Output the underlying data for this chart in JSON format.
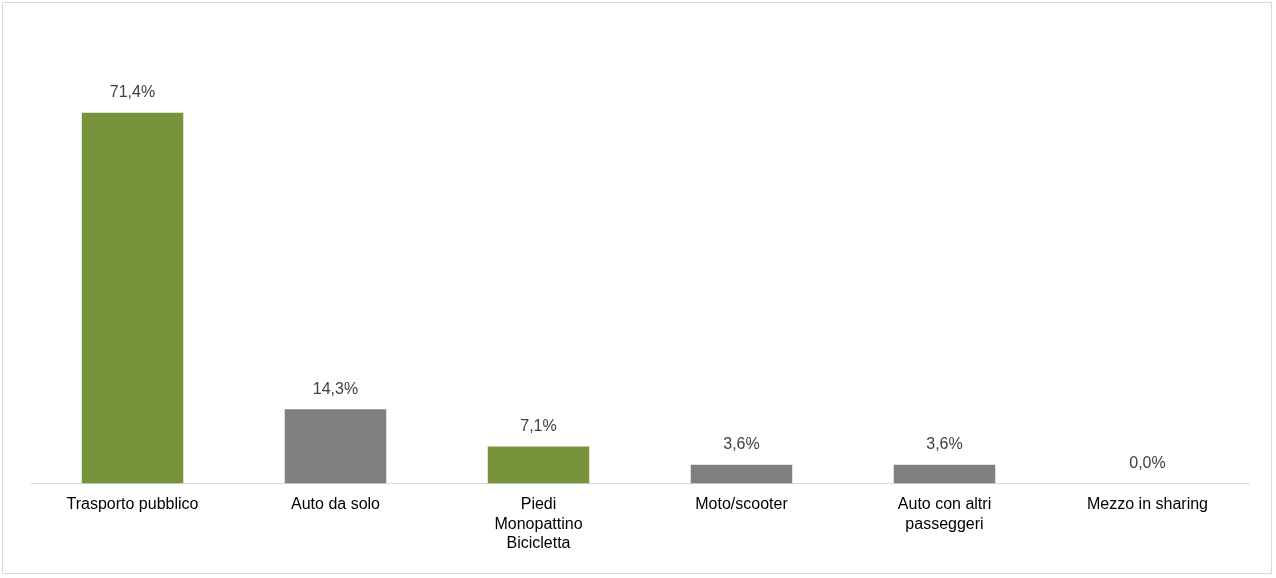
{
  "chart_data": {
    "type": "bar",
    "categories": [
      "Trasporto pubblico",
      "Auto da solo",
      "Piedi\nMonopattino\nBicicletta",
      "Moto/scooter",
      "Auto con altri passeggeri",
      "Mezzo in sharing"
    ],
    "values": [
      71.4,
      14.3,
      7.1,
      3.6,
      3.6,
      0.0
    ],
    "colors": [
      "#77933c",
      "#7f7f7f",
      "#77933c",
      "#7f7f7f",
      "#7f7f7f",
      "#7f7f7f"
    ],
    "value_labels": [
      "71,4%",
      "14,3%",
      "7,1%",
      "3,6%",
      "3,6%",
      "0,0%"
    ],
    "grid": false,
    "legend": false
  }
}
